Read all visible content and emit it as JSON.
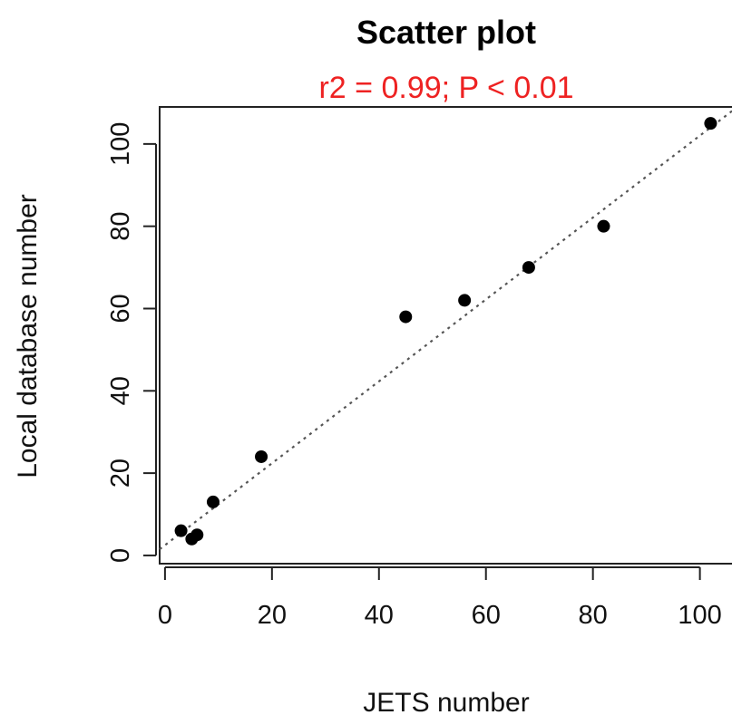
{
  "chart_data": {
    "type": "scatter",
    "title": "Scatter plot",
    "subtitle": "r2 = 0.99;  P < 0.01",
    "xlabel": "JETS number",
    "ylabel": "Local database number",
    "xlim": [
      -1,
      106
    ],
    "ylim": [
      -2,
      109
    ],
    "xticks": [
      0,
      20,
      40,
      60,
      80,
      100
    ],
    "yticks": [
      0,
      20,
      40,
      60,
      80,
      100
    ],
    "grid": false,
    "fit_line": {
      "style": "dotted",
      "x": [
        -1,
        106
      ],
      "y": [
        1.5,
        108
      ]
    },
    "points": [
      {
        "x": 3,
        "y": 6
      },
      {
        "x": 5,
        "y": 4
      },
      {
        "x": 6,
        "y": 5
      },
      {
        "x": 9,
        "y": 13
      },
      {
        "x": 18,
        "y": 24
      },
      {
        "x": 45,
        "y": 58
      },
      {
        "x": 56,
        "y": 62
      },
      {
        "x": 68,
        "y": 70
      },
      {
        "x": 82,
        "y": 80
      },
      {
        "x": 102,
        "y": 105
      }
    ],
    "colors": {
      "points": "#000000",
      "subtitle": "#ee2222",
      "fit_line": "#555555"
    }
  }
}
